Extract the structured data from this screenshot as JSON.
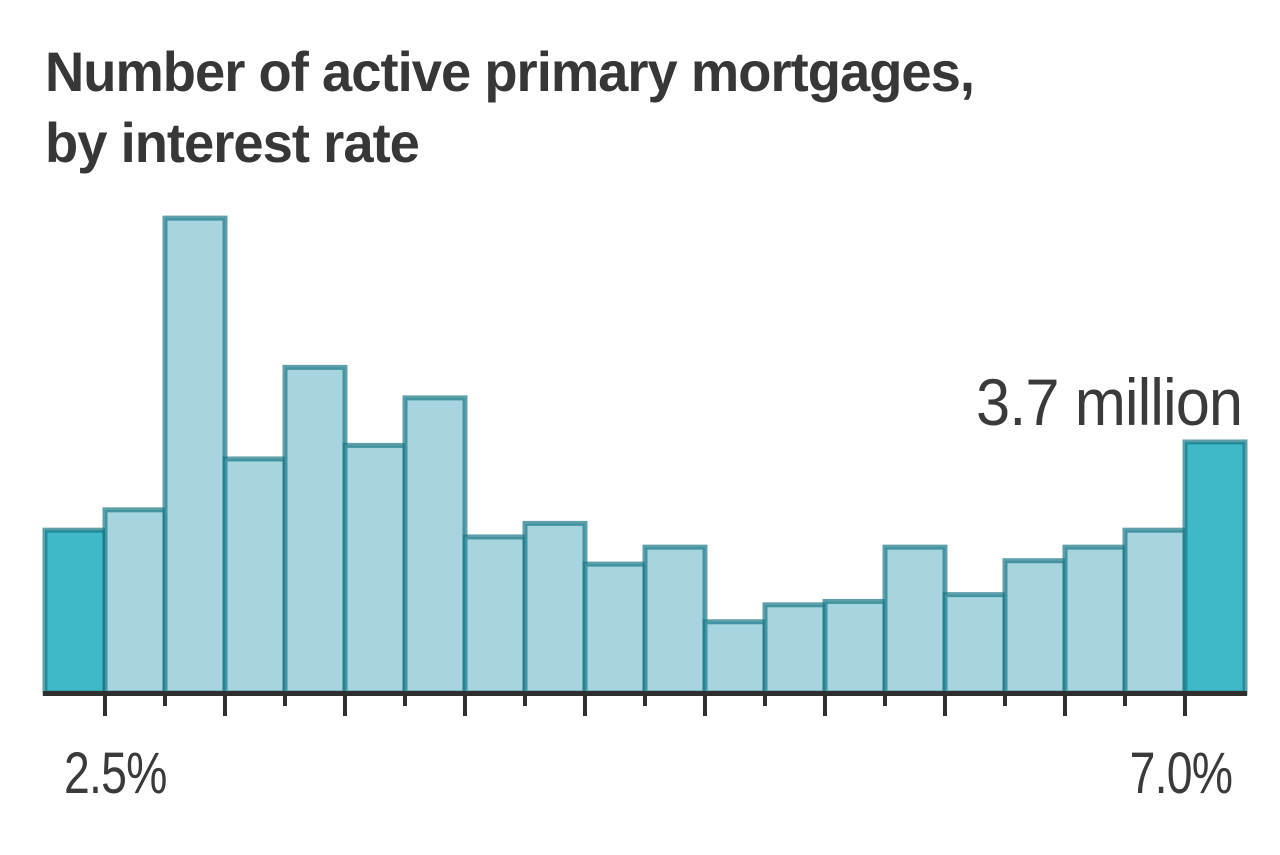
{
  "header": {
    "title_line1": "Number of active primary mortgages,",
    "title_line2": "by interest rate"
  },
  "chart_data": {
    "type": "bar",
    "title": "Number of active primary mortgages, by interest rate",
    "unit": "million mortgages",
    "bin_width_pct": 0.25,
    "bin_starts_pct": [
      2.25,
      2.5,
      2.75,
      3.0,
      3.25,
      3.5,
      3.75,
      4.0,
      4.25,
      4.5,
      4.75,
      5.0,
      5.25,
      5.5,
      5.75,
      6.0,
      6.25,
      6.5,
      6.75,
      7.0
    ],
    "values_millions": [
      2.4,
      2.7,
      7.0,
      3.45,
      4.8,
      3.65,
      4.35,
      2.3,
      2.5,
      1.9,
      2.15,
      1.05,
      1.3,
      1.35,
      2.15,
      1.45,
      1.95,
      2.15,
      2.4,
      3.7
    ],
    "highlighted_bin_indices": [
      0,
      19
    ],
    "annotation": {
      "text": "3.7 million",
      "value_millions": 3.7,
      "bin_index": 19
    },
    "x_ticks": {
      "labeled": [
        "2.5%",
        "7.0%"
      ],
      "first_tick_pct": 2.5,
      "last_tick_pct": 7.0,
      "minor_interval_pct": 0.25,
      "major_interval_pct": 0.5
    },
    "ylim": [
      0,
      7.5
    ],
    "grid": false,
    "legend": false,
    "colors": {
      "bar_fill": "#a6d5df",
      "bar_highlight_fill": "#3fb8c7",
      "bar_stroke": "rgba(25,120,132,0.7)",
      "axis": "#2f2f2f",
      "text": "#373737"
    }
  }
}
